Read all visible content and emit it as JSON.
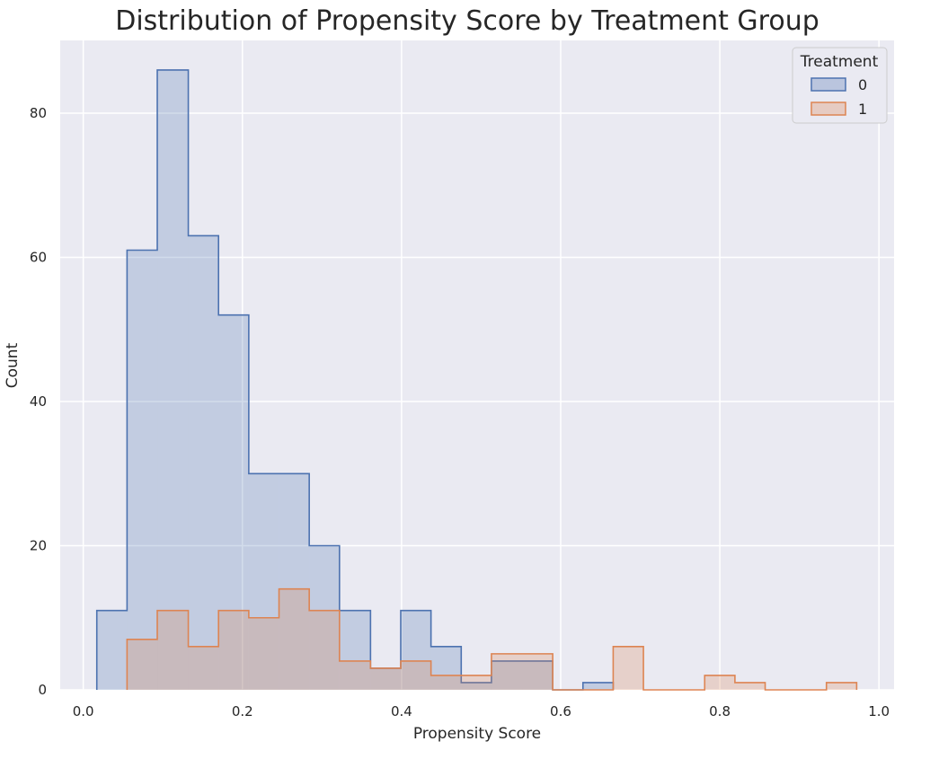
{
  "chart_data": {
    "type": "histogram-step",
    "title": "Distribution of Propensity Score by Treatment Group",
    "xlabel": "Propensity Score",
    "ylabel": "Count",
    "xlim": [
      -0.029,
      1.019
    ],
    "ylim": [
      0,
      90.1
    ],
    "xticks": [
      "0.0",
      "0.2",
      "0.4",
      "0.6",
      "0.8",
      "1.0"
    ],
    "yticks": [
      "0",
      "20",
      "40",
      "60",
      "80"
    ],
    "grid": true,
    "legend": {
      "title": "Treatment",
      "placement": "top-right"
    },
    "bin_edges": [
      0.017,
      0.055,
      0.093,
      0.132,
      0.17,
      0.208,
      0.246,
      0.284,
      0.322,
      0.361,
      0.399,
      0.437,
      0.475,
      0.513,
      0.552,
      0.59,
      0.628,
      0.666,
      0.704,
      0.743,
      0.781,
      0.819,
      0.857,
      0.895,
      0.934,
      0.972
    ],
    "series": [
      {
        "name": "0",
        "color": "#4c72b0",
        "values": [
          11,
          61,
          86,
          63,
          52,
          30,
          30,
          20,
          11,
          3,
          11,
          6,
          1,
          4,
          4,
          0,
          1,
          0,
          0,
          0,
          0,
          0,
          0,
          0,
          0
        ]
      },
      {
        "name": "1",
        "color": "#dd8452",
        "values": [
          0,
          7,
          11,
          6,
          11,
          10,
          14,
          11,
          4,
          3,
          4,
          2,
          2,
          5,
          5,
          0,
          0,
          6,
          0,
          0,
          2,
          1,
          0,
          0,
          1
        ]
      }
    ],
    "background": "#eaeaf2"
  }
}
